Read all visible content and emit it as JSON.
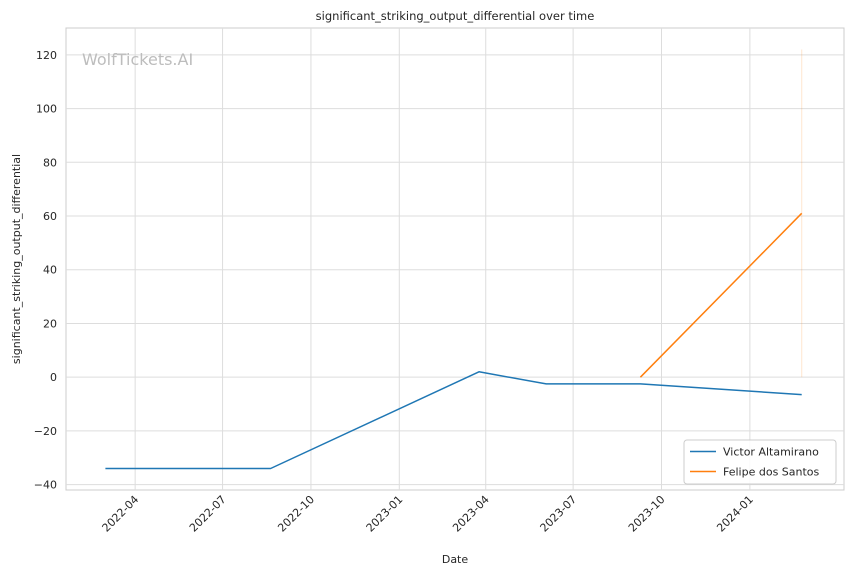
{
  "chart_data": {
    "type": "line",
    "title": "significant_striking_output_differential over time",
    "xlabel": "Date",
    "ylabel": "significant_striking_output_differential",
    "watermark": "WolfTickets.AI",
    "xlim": [
      "2022-01-19",
      "2024-04-08"
    ],
    "ylim": [
      -42,
      130
    ],
    "x_ticks": [
      "2022-04",
      "2022-07",
      "2022-10",
      "2023-01",
      "2023-04",
      "2023-07",
      "2023-10",
      "2024-01"
    ],
    "y_ticks": [
      -40,
      -20,
      0,
      20,
      40,
      60,
      80,
      100,
      120
    ],
    "grid": true,
    "legend_position": "lower-right",
    "series": [
      {
        "name": "Victor Altamirano",
        "color": "#1f77b4",
        "points": [
          {
            "x": "2022-03-01",
            "y": -34
          },
          {
            "x": "2022-08-20",
            "y": -34
          },
          {
            "x": "2023-03-25",
            "y": 2
          },
          {
            "x": "2023-06-03",
            "y": -2.5
          },
          {
            "x": "2023-09-09",
            "y": -2.5
          },
          {
            "x": "2024-02-24",
            "y": -6.5
          }
        ]
      },
      {
        "name": "Felipe dos Santos",
        "color": "#ff7f0e",
        "points": [
          {
            "x": "2023-09-09",
            "y": 0
          },
          {
            "x": "2024-02-24",
            "y": 61
          }
        ]
      }
    ],
    "annotations": [
      {
        "type": "vertical-band",
        "x": "2024-02-24",
        "y_range": [
          0,
          122
        ],
        "color": "#ff7f0e"
      }
    ]
  }
}
